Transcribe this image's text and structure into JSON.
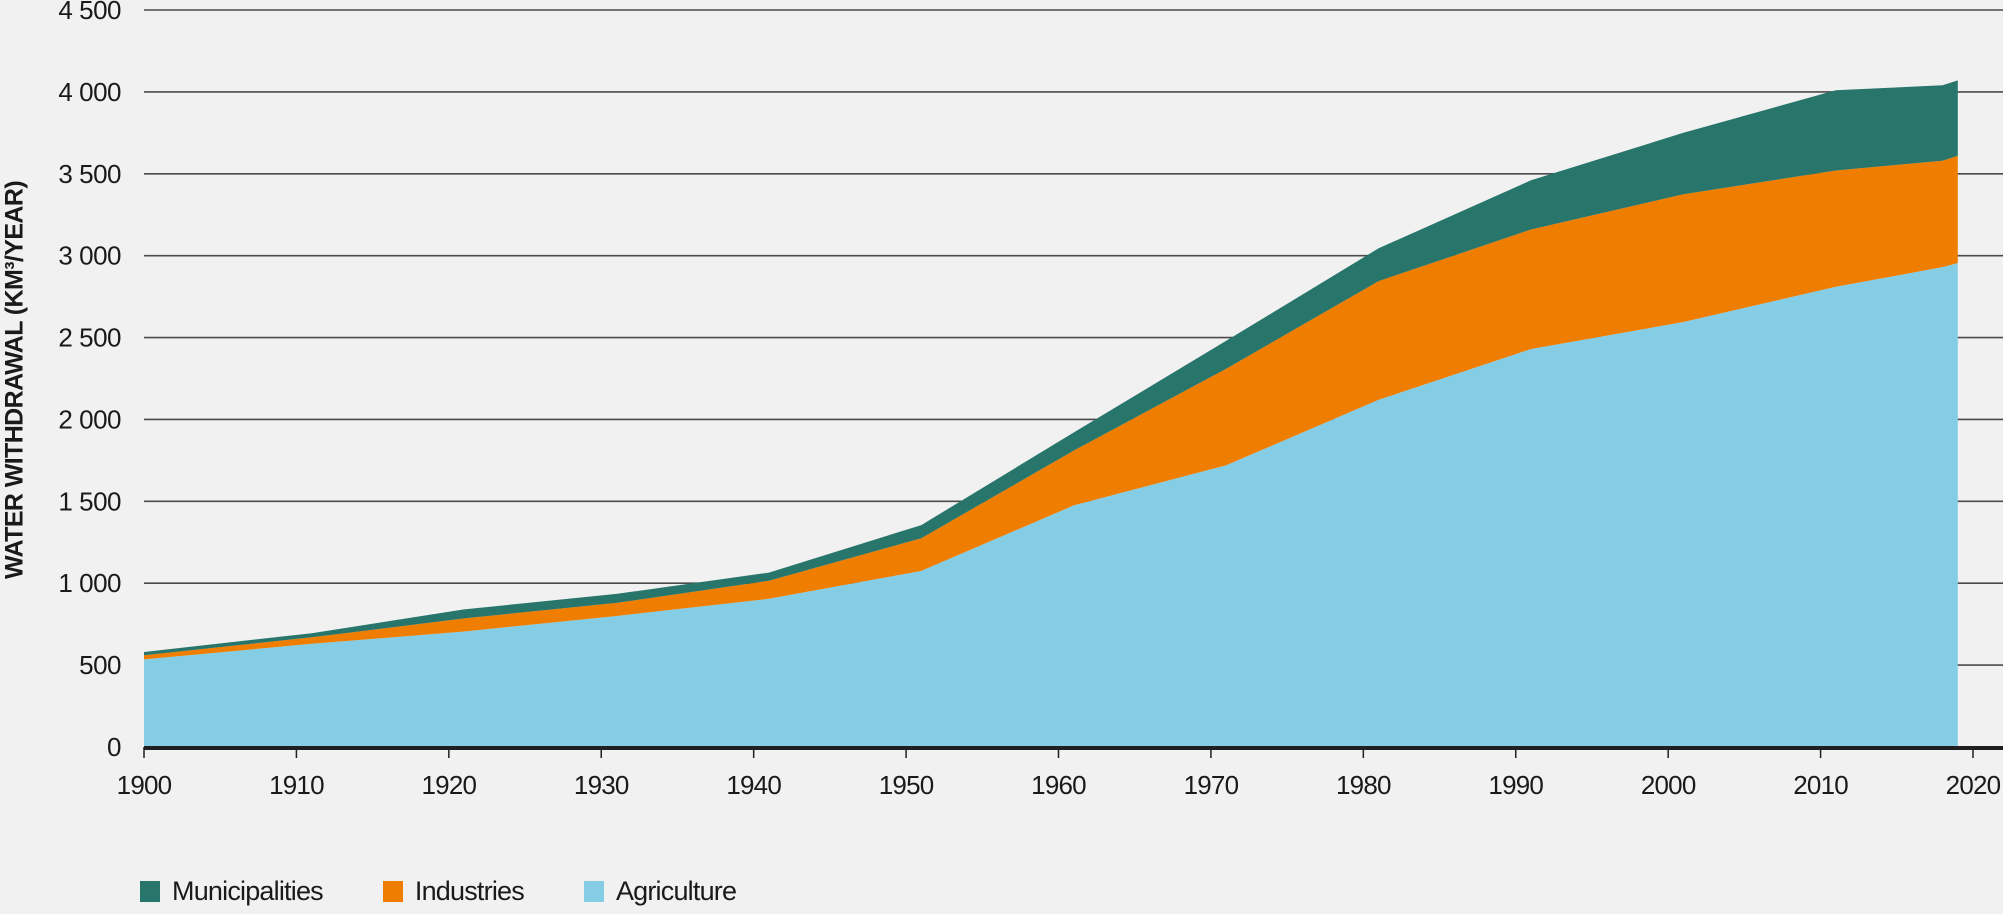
{
  "chart_data": {
    "type": "area",
    "stacked": true,
    "title": "",
    "xlabel": "",
    "ylabel": "WATER WITHDRAWAL (KM³/YEAR)",
    "xlim": [
      1900,
      2020
    ],
    "ylim": [
      0,
      4500
    ],
    "grid": true,
    "legend_position": "bottom-left",
    "x_ticks": [
      "1900",
      "1910",
      "1920",
      "1930",
      "1940",
      "1950",
      "1960",
      "1970",
      "1980",
      "1990",
      "2000",
      "2010",
      "2020"
    ],
    "y_ticks": [
      "0",
      "500",
      "1 000",
      "1 500",
      "2 000",
      "2 500",
      "3 000",
      "3 500",
      "4 000",
      "4 500"
    ],
    "x": [
      1900,
      1911,
      1921,
      1931,
      1941,
      1951,
      1961,
      1971,
      1981,
      1991,
      2001,
      2011,
      2018,
      2019
    ],
    "series": [
      {
        "name": "Agriculture",
        "color": "#85cde4",
        "values": [
          535,
          630,
          705,
          800,
          905,
          1075,
          1475,
          1720,
          2120,
          2430,
          2595,
          2810,
          2930,
          2955
        ]
      },
      {
        "name": "Industries",
        "color": "#ee7d00",
        "values": [
          25,
          40,
          80,
          80,
          110,
          200,
          335,
          590,
          725,
          730,
          780,
          710,
          650,
          655
        ]
      },
      {
        "name": "Municipalities",
        "color": "#27756b",
        "values": [
          20,
          25,
          55,
          55,
          50,
          80,
          110,
          170,
          200,
          300,
          375,
          490,
          460,
          460
        ]
      }
    ],
    "legend": [
      {
        "label": "Municipalities",
        "color": "#27756b"
      },
      {
        "label": "Industries",
        "color": "#ee7d00"
      },
      {
        "label": "Agriculture",
        "color": "#85cde4"
      }
    ]
  }
}
